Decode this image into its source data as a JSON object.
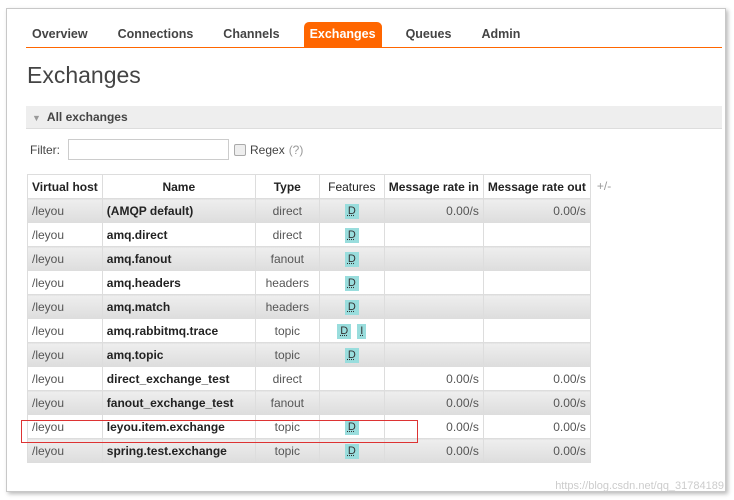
{
  "nav": {
    "tabs": [
      "Overview",
      "Connections",
      "Channels",
      "Exchanges",
      "Queues",
      "Admin"
    ],
    "active": "Exchanges"
  },
  "page_title": "Exchanges",
  "section": {
    "title": "All exchanges"
  },
  "filter": {
    "label": "Filter:",
    "value": "",
    "regex_label": "Regex",
    "help": "(?)"
  },
  "table": {
    "headers": [
      "Virtual host",
      "Name",
      "Type",
      "Features",
      "Message rate in",
      "Message rate out"
    ],
    "toggle": "+/-",
    "rows": [
      {
        "vhost": "/leyou",
        "name": "(AMQP default)",
        "type": "direct",
        "features": [
          "D"
        ],
        "rate_in": "0.00/s",
        "rate_out": "0.00/s"
      },
      {
        "vhost": "/leyou",
        "name": "amq.direct",
        "type": "direct",
        "features": [
          "D"
        ],
        "rate_in": "",
        "rate_out": ""
      },
      {
        "vhost": "/leyou",
        "name": "amq.fanout",
        "type": "fanout",
        "features": [
          "D"
        ],
        "rate_in": "",
        "rate_out": ""
      },
      {
        "vhost": "/leyou",
        "name": "amq.headers",
        "type": "headers",
        "features": [
          "D"
        ],
        "rate_in": "",
        "rate_out": ""
      },
      {
        "vhost": "/leyou",
        "name": "amq.match",
        "type": "headers",
        "features": [
          "D"
        ],
        "rate_in": "",
        "rate_out": ""
      },
      {
        "vhost": "/leyou",
        "name": "amq.rabbitmq.trace",
        "type": "topic",
        "features": [
          "D",
          "I"
        ],
        "rate_in": "",
        "rate_out": ""
      },
      {
        "vhost": "/leyou",
        "name": "amq.topic",
        "type": "topic",
        "features": [
          "D"
        ],
        "rate_in": "",
        "rate_out": ""
      },
      {
        "vhost": "/leyou",
        "name": "direct_exchange_test",
        "type": "direct",
        "features": [],
        "rate_in": "0.00/s",
        "rate_out": "0.00/s"
      },
      {
        "vhost": "/leyou",
        "name": "fanout_exchange_test",
        "type": "fanout",
        "features": [],
        "rate_in": "0.00/s",
        "rate_out": "0.00/s"
      },
      {
        "vhost": "/leyou",
        "name": "leyou.item.exchange",
        "type": "topic",
        "features": [
          "D"
        ],
        "rate_in": "0.00/s",
        "rate_out": "0.00/s"
      },
      {
        "vhost": "/leyou",
        "name": "spring.test.exchange",
        "type": "topic",
        "features": [
          "D"
        ],
        "rate_in": "0.00/s",
        "rate_out": "0.00/s"
      }
    ]
  },
  "watermark": "https://blog.csdn.net/qq_31784189",
  "colors": {
    "accent": "#ff6600",
    "badge": "#99dddd",
    "highlight": "#dd3333"
  }
}
